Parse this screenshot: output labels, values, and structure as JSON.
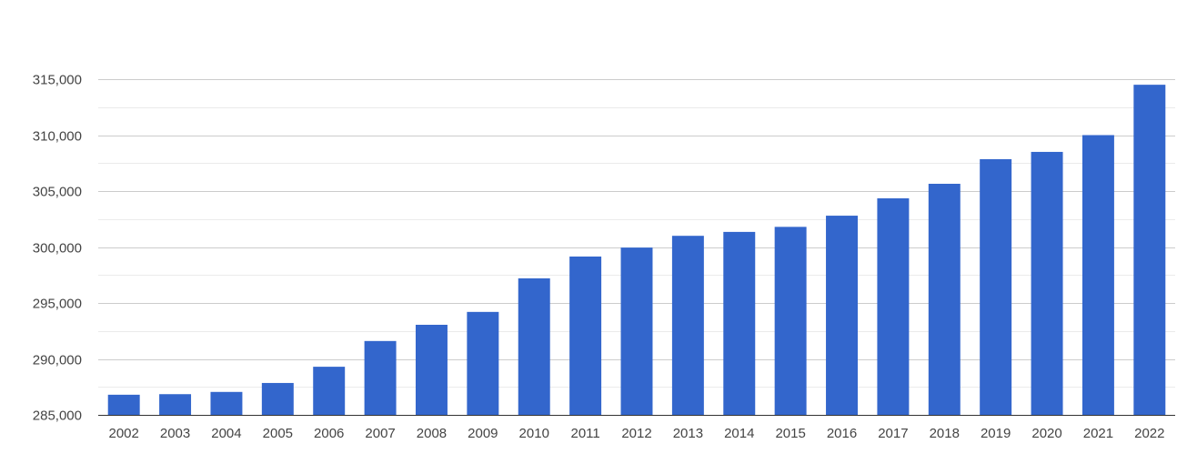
{
  "chart_data": {
    "type": "bar",
    "title": "",
    "xlabel": "",
    "ylabel": "",
    "categories": [
      "2002",
      "2003",
      "2004",
      "2005",
      "2006",
      "2007",
      "2008",
      "2009",
      "2010",
      "2011",
      "2012",
      "2013",
      "2014",
      "2015",
      "2016",
      "2017",
      "2018",
      "2019",
      "2020",
      "2021",
      "2022"
    ],
    "values": [
      286800,
      286850,
      287050,
      287850,
      289300,
      291600,
      293050,
      294200,
      297200,
      299150,
      299950,
      301000,
      301350,
      301800,
      302800,
      304350,
      305650,
      307850,
      308500,
      310000,
      314500
    ],
    "ylim": [
      285000,
      315000
    ],
    "y_ticks": [
      285000,
      290000,
      295000,
      300000,
      305000,
      310000,
      315000
    ],
    "y_tick_labels": [
      "285,000",
      "290,000",
      "295,000",
      "300,000",
      "305,000",
      "310,000",
      "315,000"
    ],
    "bar_color": "#3366cc",
    "grid": true,
    "legend": "none"
  }
}
